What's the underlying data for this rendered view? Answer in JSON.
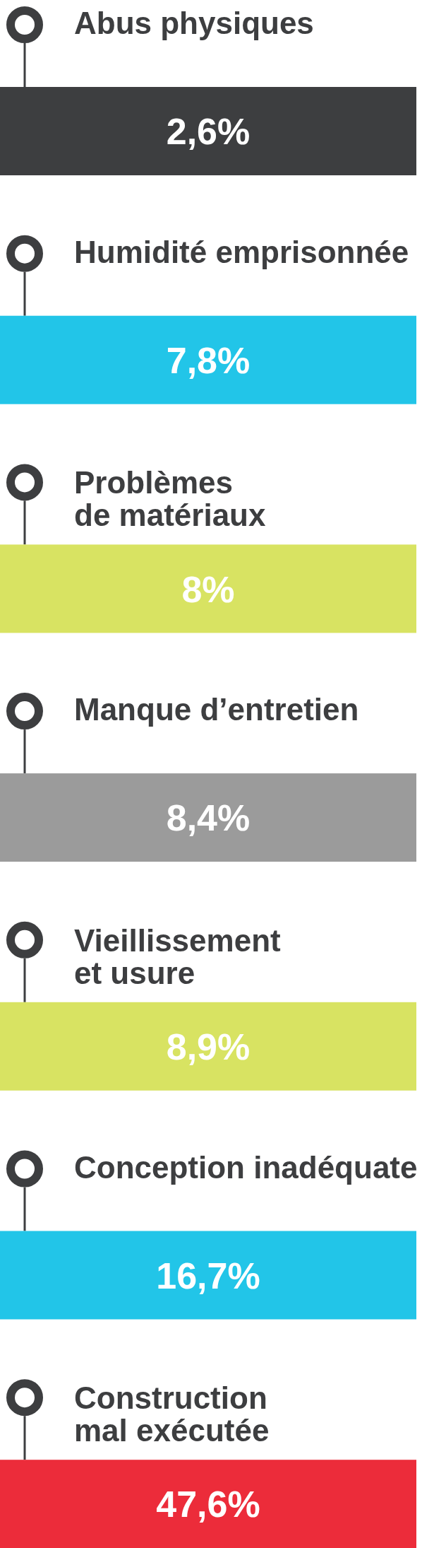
{
  "chart_data": {
    "type": "other",
    "categories": [
      "Abus physiques",
      "Humidité emprisonnée",
      "Problèmes\nde matériaux",
      "Manque d’entretien",
      "Vieillissement\net usure",
      "Conception inadéquate",
      "Construction\nmal exécutée"
    ],
    "values": [
      2.6,
      7.8,
      8,
      8.4,
      8.9,
      16.7,
      47.6
    ],
    "value_labels": [
      "2,6%",
      "7,8%",
      "8%",
      "8,4%",
      "8,9%",
      "16,7%",
      "47,6%"
    ],
    "colors": [
      "#3d3e40",
      "#22c5e8",
      "#d8e362",
      "#9b9b9b",
      "#d8e362",
      "#22c5e8",
      "#ec2c3a"
    ]
  }
}
